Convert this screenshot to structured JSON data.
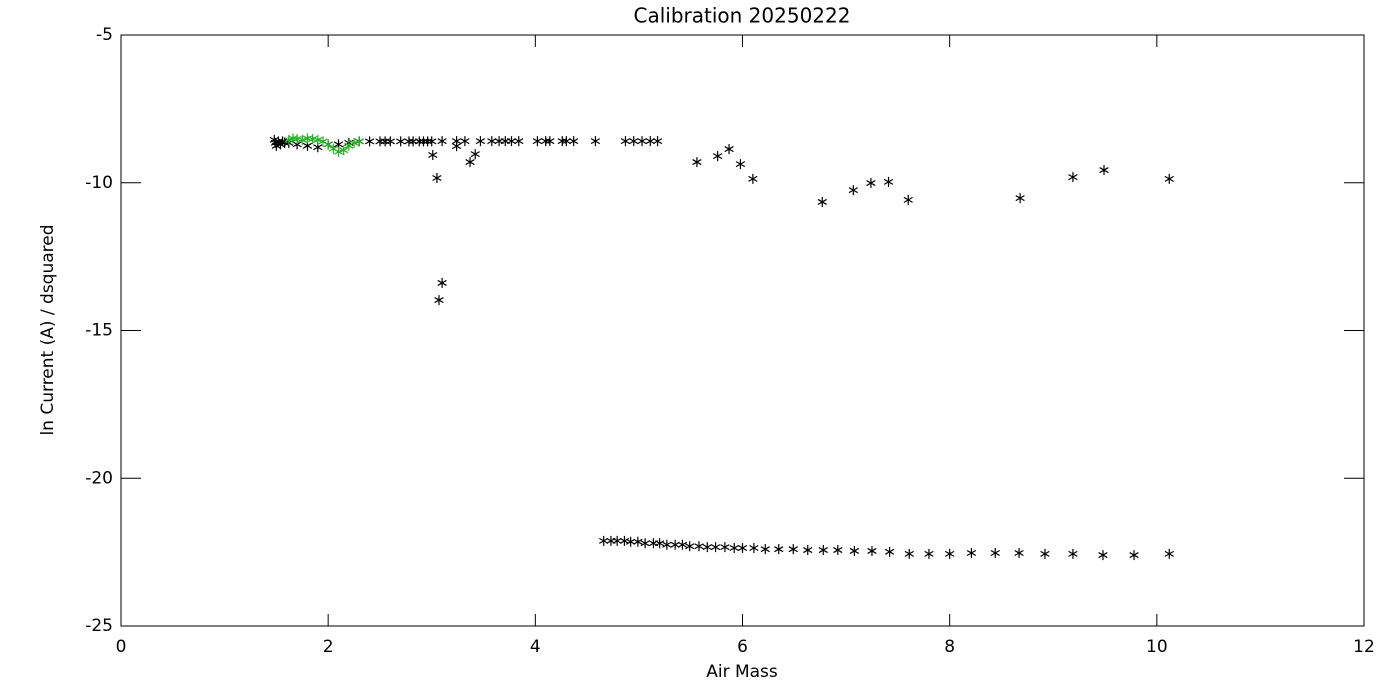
{
  "chart_data": {
    "type": "scatter",
    "title": "Calibration 20250222",
    "x_label": "Air Mass",
    "y_label": "ln Current (A) / dsquared",
    "xlim": [
      0,
      12
    ],
    "xticks": [
      0,
      2,
      4,
      6,
      8,
      10,
      12
    ],
    "ylim": [
      -25,
      -5
    ],
    "yticks": [
      -25,
      -20,
      -15,
      -10,
      -5
    ],
    "series": [
      {
        "color": "#000000",
        "x": [
          1.48,
          1.49,
          1.5,
          1.52,
          1.54,
          1.56,
          1.58,
          1.62,
          1.7,
          1.8,
          1.9,
          2.0,
          2.1,
          2.2,
          2.3,
          2.4,
          2.5,
          2.55,
          2.6,
          2.7,
          2.78,
          2.82,
          2.88,
          2.92,
          2.96,
          3.0,
          3.01,
          3.05,
          3.1,
          3.07,
          3.1,
          3.24,
          3.24,
          3.32,
          3.37,
          3.42,
          3.47,
          3.58,
          3.65,
          3.71,
          3.77,
          3.84,
          4.02,
          4.1,
          4.14,
          4.26,
          4.3,
          4.37,
          4.58,
          4.87,
          4.95,
          5.03,
          5.11,
          5.18,
          5.56,
          5.76,
          5.87,
          5.98,
          6.1,
          6.77,
          7.07,
          7.24,
          7.41,
          7.6,
          8.68,
          9.19,
          9.49,
          10.12,
          4.66,
          4.73,
          4.79,
          4.86,
          4.92,
          4.99,
          5.06,
          5.14,
          5.2,
          5.27,
          5.35,
          5.42,
          5.49,
          5.58,
          5.66,
          5.74,
          5.83,
          5.92,
          6.0,
          6.11,
          6.22,
          6.35,
          6.49,
          6.63,
          6.78,
          6.92,
          7.08,
          7.25,
          7.42,
          7.61,
          7.8,
          8.0,
          8.21,
          8.44,
          8.67,
          8.92,
          9.19,
          9.48,
          9.78,
          10.12
        ],
        "values": [
          -8.55,
          -8.65,
          -8.75,
          -8.6,
          -8.7,
          -8.6,
          -8.65,
          -8.65,
          -8.7,
          -8.75,
          -8.8,
          -8.7,
          -8.7,
          -8.65,
          -8.6,
          -8.6,
          -8.6,
          -8.6,
          -8.6,
          -8.6,
          -8.6,
          -8.6,
          -8.6,
          -8.6,
          -8.6,
          -8.6,
          -9.06,
          -9.84,
          -8.59,
          -13.97,
          -13.39,
          -8.76,
          -8.59,
          -8.59,
          -9.3,
          -9.03,
          -8.59,
          -8.59,
          -8.59,
          -8.59,
          -8.59,
          -8.59,
          -8.59,
          -8.59,
          -8.59,
          -8.59,
          -8.59,
          -8.59,
          -8.59,
          -8.59,
          -8.59,
          -8.59,
          -8.59,
          -8.59,
          -9.3,
          -9.1,
          -8.86,
          -9.37,
          -9.87,
          -10.65,
          -10.25,
          -10.01,
          -9.97,
          -10.58,
          -10.52,
          -9.81,
          -9.57,
          -9.87,
          -22.12,
          -22.12,
          -22.12,
          -22.12,
          -22.15,
          -22.15,
          -22.2,
          -22.2,
          -22.2,
          -22.25,
          -22.25,
          -22.25,
          -22.3,
          -22.3,
          -22.33,
          -22.33,
          -22.33,
          -22.36,
          -22.36,
          -22.36,
          -22.4,
          -22.4,
          -22.4,
          -22.43,
          -22.43,
          -22.43,
          -22.46,
          -22.46,
          -22.49,
          -22.56,
          -22.56,
          -22.56,
          -22.53,
          -22.53,
          -22.53,
          -22.56,
          -22.56,
          -22.6,
          -22.6,
          -22.56
        ]
      },
      {
        "color": "#22b022",
        "x": [
          1.62,
          1.66,
          1.7,
          1.75,
          1.8,
          1.85,
          1.9,
          1.95,
          2.0,
          2.05,
          2.1,
          2.15,
          2.2,
          2.25,
          2.3
        ],
        "values": [
          -8.55,
          -8.5,
          -8.52,
          -8.55,
          -8.5,
          -8.52,
          -8.55,
          -8.6,
          -8.7,
          -8.85,
          -8.95,
          -8.9,
          -8.75,
          -8.65,
          -8.6
        ]
      }
    ]
  }
}
